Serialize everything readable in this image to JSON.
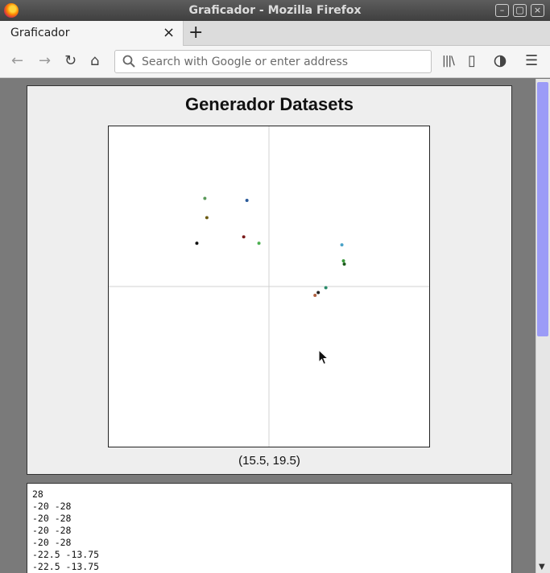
{
  "window": {
    "title": "Graficador - Mozilla Firefox",
    "controls": {
      "minimize": "–",
      "maximize": "▢",
      "close": "×"
    }
  },
  "tabs": [
    {
      "label": "Graficador",
      "close": "×"
    }
  ],
  "newtab_label": "+",
  "toolbar": {
    "back": "←",
    "forward": "→",
    "reload": "↻",
    "home": "⌂",
    "library": "|||\\",
    "sidebar": "▯",
    "menu": "☰"
  },
  "search": {
    "placeholder": "Search with Google or enter address",
    "value": ""
  },
  "page": {
    "heading": "Generador Datasets",
    "coordinate_readout": "(15.5, 19.5)",
    "dataset_lines": [
      "28",
      "-20 -28",
      "-20 -28",
      "-20 -28",
      "-20 -28",
      "-22.5 -13.75",
      "-22.5 -13.75"
    ]
  },
  "colors": {
    "axis": "#d0d0d0",
    "plot_bg": "#ffffff",
    "page_bg": "#7a7a7a"
  },
  "chart_data": {
    "type": "scatter",
    "xlim": [
      -40,
      40
    ],
    "ylim": [
      -40,
      40
    ],
    "grid": false,
    "points": [
      {
        "x": -16,
        "y": 22,
        "color": "#5a9a5a"
      },
      {
        "x": -5.5,
        "y": 21.5,
        "color": "#2a5a9a"
      },
      {
        "x": -15.5,
        "y": 17.2,
        "color": "#6b5a10"
      },
      {
        "x": -18,
        "y": 10.8,
        "color": "#111111"
      },
      {
        "x": -6.3,
        "y": 12.4,
        "color": "#7a1a1a"
      },
      {
        "x": -2.5,
        "y": 10.8,
        "color": "#4caf50"
      },
      {
        "x": 18.2,
        "y": 10.4,
        "color": "#4aa3c8"
      },
      {
        "x": 18.6,
        "y": 6.4,
        "color": "#3a9a3a"
      },
      {
        "x": 18.8,
        "y": 5.6,
        "color": "#1a5a1a"
      },
      {
        "x": 14.2,
        "y": -0.3,
        "color": "#2a8a6a"
      },
      {
        "x": 12.3,
        "y": -1.5,
        "color": "#222222"
      },
      {
        "x": 11.5,
        "y": -2.2,
        "color": "#b06040"
      }
    ]
  }
}
